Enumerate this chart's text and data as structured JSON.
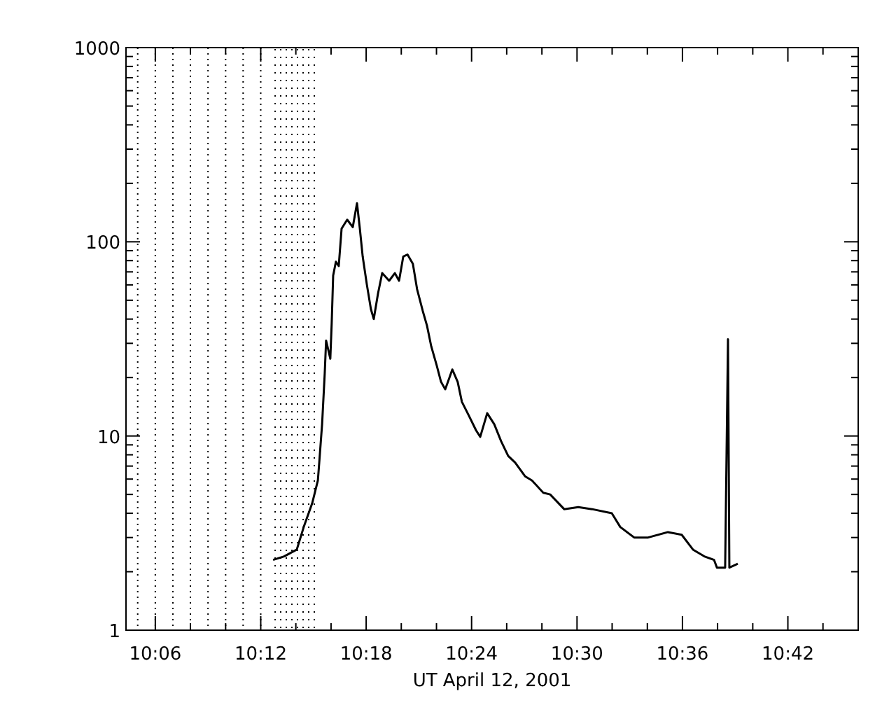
{
  "chart_data": {
    "type": "line",
    "xlabel": "UT April 12, 2001",
    "log": "y",
    "grid": false,
    "marker": "none",
    "line_style": "solid",
    "xlim": [
      10.0722,
      10.7667
    ],
    "ylim": [
      1,
      1000
    ],
    "xticks": [
      {
        "value": 10.1,
        "label": "10:06"
      },
      {
        "value": 10.1333,
        "label": null
      },
      {
        "value": 10.1667,
        "label": null
      },
      {
        "value": 10.2,
        "label": "10:12"
      },
      {
        "value": 10.2333,
        "label": null
      },
      {
        "value": 10.2667,
        "label": null
      },
      {
        "value": 10.3,
        "label": "10:18"
      },
      {
        "value": 10.3333,
        "label": null
      },
      {
        "value": 10.3667,
        "label": null
      },
      {
        "value": 10.4,
        "label": "10:24"
      },
      {
        "value": 10.4333,
        "label": null
      },
      {
        "value": 10.4667,
        "label": null
      },
      {
        "value": 10.5,
        "label": "10:30"
      },
      {
        "value": 10.5333,
        "label": null
      },
      {
        "value": 10.5667,
        "label": null
      },
      {
        "value": 10.6,
        "label": "10:36"
      },
      {
        "value": 10.6333,
        "label": null
      },
      {
        "value": 10.6667,
        "label": null
      },
      {
        "value": 10.7,
        "label": "10:42"
      },
      {
        "value": 10.7333,
        "label": null
      }
    ],
    "yticks": [
      1,
      {
        "value": 2,
        "label": null
      },
      {
        "value": 3,
        "label": null
      },
      {
        "value": 4,
        "label": null
      },
      {
        "value": 5,
        "label": null
      },
      {
        "value": 6,
        "label": null
      },
      {
        "value": 7,
        "label": null
      },
      {
        "value": 8,
        "label": null
      },
      {
        "value": 9,
        "label": null
      },
      10,
      {
        "value": 20,
        "label": null
      },
      {
        "value": 30,
        "label": null
      },
      {
        "value": 40,
        "label": null
      },
      {
        "value": 50,
        "label": null
      },
      {
        "value": 60,
        "label": null
      },
      {
        "value": 70,
        "label": null
      },
      {
        "value": 80,
        "label": null
      },
      {
        "value": 90,
        "label": null
      },
      100,
      {
        "value": 200,
        "label": null
      },
      {
        "value": 300,
        "label": null
      },
      {
        "value": 400,
        "label": null
      },
      {
        "value": 500,
        "label": null
      },
      {
        "value": 600,
        "label": null
      },
      {
        "value": 700,
        "label": null
      },
      {
        "value": 800,
        "label": null
      },
      {
        "value": 900,
        "label": null
      },
      1000
    ],
    "ref_lines": [
      {
        "axis": "x",
        "value": 10.0833,
        "color": "#000000",
        "line_style": "dotted"
      },
      {
        "axis": "x",
        "value": 10.1,
        "color": "#000000",
        "line_style": "dotted"
      },
      {
        "axis": "x",
        "value": 10.1167,
        "color": "#000000",
        "line_style": "dotted"
      },
      {
        "axis": "x",
        "value": 10.1333,
        "color": "#000000",
        "line_style": "dotted"
      },
      {
        "axis": "x",
        "value": 10.15,
        "color": "#000000",
        "line_style": "dotted"
      },
      {
        "axis": "x",
        "value": 10.1667,
        "color": "#000000",
        "line_style": "dotted"
      },
      {
        "axis": "x",
        "value": 10.1833,
        "color": "#000000",
        "line_style": "dotted"
      },
      {
        "axis": "x",
        "value": 10.2,
        "color": "#000000",
        "line_style": "dotted"
      }
    ],
    "bands": [
      {
        "axis": "x",
        "from": 10.213,
        "to": 10.2515,
        "color": "#000000"
      }
    ],
    "series": [
      {
        "color": "#000000",
        "x": [
          10.2117,
          10.2222,
          10.2342,
          10.2408,
          10.2488,
          10.2542,
          10.2555,
          10.2582,
          10.2607,
          10.262,
          10.266,
          10.2673,
          10.2687,
          10.2713,
          10.274,
          10.2767,
          10.282,
          10.2873,
          10.2913,
          10.294,
          10.2967,
          10.3007,
          10.3045,
          10.3072,
          10.3112,
          10.3152,
          10.3218,
          10.3272,
          10.3312,
          10.3352,
          10.3392,
          10.3443,
          10.3483,
          10.3537,
          10.3577,
          10.3617,
          10.367,
          10.371,
          10.375,
          10.379,
          10.3817,
          10.3868,
          10.3908,
          10.3975,
          10.4042,
          10.4082,
          10.4148,
          10.4215,
          10.428,
          10.4347,
          10.4413,
          10.4507,
          10.4573,
          10.468,
          10.4745,
          10.4878,
          10.5012,
          10.5143,
          10.533,
          10.541,
          10.5542,
          10.5675,
          10.5862,
          10.5993,
          10.61,
          10.6207,
          10.63,
          10.6327,
          10.6405,
          10.6432,
          10.6445,
          10.6525
        ],
        "values": [
          2.3,
          2.4,
          2.6,
          3.4,
          4.5,
          5.9,
          7.3,
          11.5,
          21,
          31,
          25,
          38,
          67,
          79,
          75,
          117,
          130,
          119,
          158,
          117,
          84,
          60,
          45,
          40,
          54,
          69,
          63,
          69,
          63,
          84,
          86,
          77,
          57,
          44,
          37,
          29,
          23,
          19,
          17.4,
          20,
          22,
          19,
          15,
          12.7,
          10.7,
          9.9,
          13.1,
          11.5,
          9.4,
          7.9,
          7.3,
          6.2,
          5.9,
          5.1,
          5.0,
          4.2,
          4.3,
          4.2,
          4.0,
          3.4,
          3.0,
          3.0,
          3.2,
          3.1,
          2.6,
          2.4,
          2.3,
          2.1,
          2.1,
          31.5,
          2.1,
          2.2
        ]
      }
    ]
  }
}
